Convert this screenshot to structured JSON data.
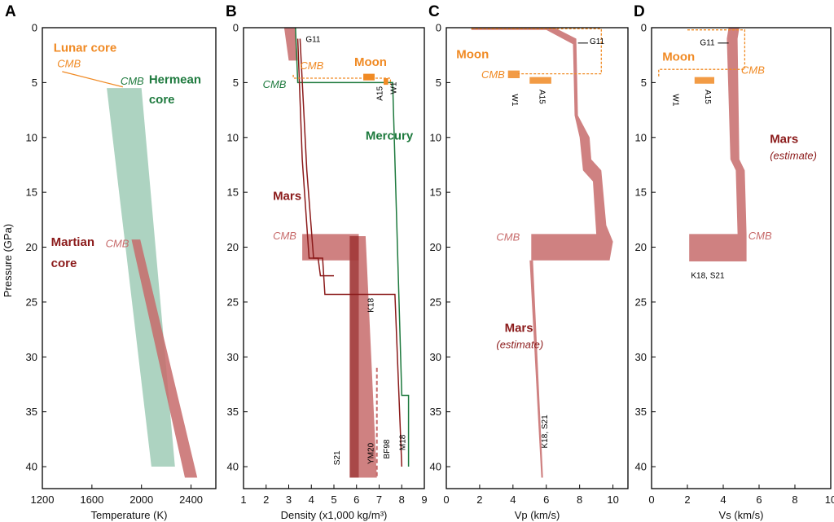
{
  "colors": {
    "moon": "#f08a24",
    "mercury": "#1e7a3e",
    "mars": "#8b1a1a",
    "mars_fill": "#c76b6b",
    "mercury_fill": "#9fcbb6",
    "axis": "#000000"
  },
  "chart_data": [
    {
      "type": "area",
      "panel": "A",
      "xlabel": "Temperature (K)",
      "ylabel": "Pressure (GPa)",
      "xlim": [
        1200,
        2600
      ],
      "ylim": [
        0,
        42
      ],
      "xticks": [
        1200,
        1600,
        2000,
        2400
      ],
      "yticks": [
        0,
        5,
        10,
        15,
        20,
        25,
        30,
        35,
        40
      ],
      "series": [
        {
          "name": "Hermean core",
          "polygon": [
            [
              1720,
              5.5
            ],
            [
              2000,
              5.5
            ],
            [
              2270,
              40
            ],
            [
              2080,
              40
            ]
          ]
        },
        {
          "name": "Martian core",
          "polygon": [
            [
              1920,
              19.3
            ],
            [
              1990,
              19.3
            ],
            [
              2450,
              41
            ],
            [
              2350,
              41
            ]
          ]
        },
        {
          "name": "Lunar core CMB",
          "line": [
            [
              1360,
              4.0
            ],
            [
              1850,
              5.4
            ]
          ]
        }
      ],
      "annotations": [
        {
          "id": "lunar_core",
          "text": "Lunar core",
          "x": 1290,
          "y": 2.2,
          "color": "moon",
          "bold": true
        },
        {
          "id": "lunar_cmb",
          "text": "CMB",
          "x": 1320,
          "y": 3.6,
          "color": "moon",
          "italic": true
        },
        {
          "id": "herm_cmb",
          "text": "CMB",
          "x": 1830,
          "y": 5.2,
          "color": "mercury",
          "italic": true
        },
        {
          "id": "herm_core1",
          "text": "Hermean",
          "x": 2060,
          "y": 5.1,
          "color": "mercury",
          "bold": true
        },
        {
          "id": "herm_core2",
          "text": "core",
          "x": 2060,
          "y": 6.9,
          "color": "mercury",
          "bold": true
        },
        {
          "id": "mart_core1",
          "text": "Martian",
          "x": 1270,
          "y": 19.9,
          "color": "mars",
          "bold": true
        },
        {
          "id": "mart_core2",
          "text": "core",
          "x": 1270,
          "y": 21.8,
          "color": "mars",
          "bold": true
        },
        {
          "id": "mart_cmb",
          "text": "CMB",
          "x": 1710,
          "y": 20.0,
          "color": "mars_fill",
          "italic": true
        }
      ]
    },
    {
      "type": "line",
      "panel": "B",
      "xlabel": "Density (x1,000 kg/m³)",
      "xlim": [
        1,
        9
      ],
      "ylim": [
        0,
        42
      ],
      "xticks": [
        1,
        2,
        3,
        4,
        5,
        6,
        7,
        8,
        9
      ],
      "yticks": [
        0,
        5,
        10,
        15,
        20,
        25,
        30,
        35,
        40
      ],
      "series": [
        {
          "name": "Mercury",
          "color": "mercury",
          "points": [
            [
              3.3,
              0
            ],
            [
              3.4,
              5
            ],
            [
              7.6,
              5
            ],
            [
              8.0,
              33.5
            ],
            [
              8.3,
              33.5
            ],
            [
              8.3,
              40
            ]
          ]
        },
        {
          "name": "Mars",
          "color": "mars",
          "points": [
            [
              3.4,
              1
            ],
            [
              3.6,
              12
            ],
            [
              3.9,
              21
            ],
            [
              4.5,
              21
            ],
            [
              4.6,
              24.3
            ],
            [
              7.7,
              24.3
            ],
            [
              8.0,
              40
            ]
          ]
        },
        {
          "name": "Mars",
          "color": "mars",
          "points": [
            [
              3.5,
              1
            ],
            [
              3.8,
              13
            ],
            [
              4.1,
              21
            ],
            [
              4.3,
              21
            ],
            [
              4.4,
              22.6
            ],
            [
              5.0,
              22.6
            ]
          ]
        }
      ],
      "areas": [
        {
          "name": "Mars shell",
          "color": "mars_fill",
          "polygon": [
            [
              2.8,
              0
            ],
            [
              3.3,
              0
            ],
            [
              3.4,
              3
            ],
            [
              3.0,
              3
            ]
          ]
        },
        {
          "name": "Mars CMB band",
          "color": "mars_fill",
          "polygon": [
            [
              3.6,
              18.8
            ],
            [
              6.1,
              18.8
            ],
            [
              6.1,
              21.2
            ],
            [
              3.6,
              21.2
            ]
          ]
        },
        {
          "name": "Mars core",
          "color": "mars_fill",
          "polygon": [
            [
              5.7,
              19
            ],
            [
              6.4,
              19
            ],
            [
              6.9,
              41
            ],
            [
              5.7,
              41
            ]
          ]
        },
        {
          "name": "Mars core dark",
          "color": "mars",
          "polygon": [
            [
              5.7,
              19
            ],
            [
              6.1,
              19
            ],
            [
              6.1,
              41
            ],
            [
              5.7,
              41
            ]
          ]
        }
      ],
      "annotations": [
        {
          "id": "g11",
          "text": "G11",
          "x": 3.75,
          "y": 1.3,
          "color": "black"
        },
        {
          "id": "cmb_o",
          "text": "CMB",
          "x": 3.5,
          "y": 3.8,
          "color": "moon",
          "italic": true
        },
        {
          "id": "moon",
          "text": "Moon",
          "x": 5.9,
          "y": 3.5,
          "color": "moon",
          "bold": true
        },
        {
          "id": "cmb_g",
          "text": "CMB",
          "x": 1.85,
          "y": 5.5,
          "color": "mercury",
          "italic": true
        },
        {
          "id": "a15",
          "text": "A15",
          "x": 7.15,
          "y": 6.0,
          "color": "black",
          "vertical": true
        },
        {
          "id": "w1",
          "text": "W1",
          "x": 7.75,
          "y": 5.5,
          "color": "black",
          "vertical": true
        },
        {
          "id": "mercury",
          "text": "Mercury",
          "x": 6.4,
          "y": 10.2,
          "color": "mercury",
          "bold": true
        },
        {
          "id": "mars",
          "text": "Mars",
          "x": 2.3,
          "y": 15.7,
          "color": "mars",
          "bold": true
        },
        {
          "id": "cmb_m",
          "text": "CMB",
          "x": 2.3,
          "y": 19.3,
          "color": "mars_fill",
          "italic": true
        },
        {
          "id": "k18",
          "text": "K18",
          "x": 6.75,
          "y": 25.3,
          "color": "black",
          "vertical": true
        },
        {
          "id": "s21",
          "text": "S21",
          "x": 5.25,
          "y": 39.2,
          "color": "black",
          "vertical": true
        },
        {
          "id": "ym20",
          "text": "YM20",
          "x": 6.75,
          "y": 38.8,
          "color": "black",
          "vertical": true
        },
        {
          "id": "bf98",
          "text": "BF98",
          "x": 7.45,
          "y": 38.4,
          "color": "black",
          "vertical": true
        },
        {
          "id": "m18",
          "text": "M18",
          "x": 8.15,
          "y": 37.8,
          "color": "black",
          "vertical": true
        }
      ]
    },
    {
      "type": "line",
      "panel": "C",
      "xlabel": "Vp (km/s)",
      "xlim": [
        0,
        10.9
      ],
      "ylim": [
        0,
        42
      ],
      "xticks": [
        0,
        2,
        4,
        6,
        8,
        10
      ],
      "yticks": [
        0,
        5,
        10,
        15,
        20,
        25,
        30,
        35,
        40
      ],
      "areas": [
        {
          "name": "Mars Vp",
          "color": "mars_fill",
          "polygon": [
            [
              1.5,
              0
            ],
            [
              6.5,
              0
            ],
            [
              7.8,
              1
            ],
            [
              7.9,
              8
            ],
            [
              8.6,
              10
            ],
            [
              8.7,
              12
            ],
            [
              9.3,
              13
            ],
            [
              9.6,
              18
            ],
            [
              10.0,
              19.5
            ],
            [
              9.8,
              21.2
            ],
            [
              5.1,
              21.2
            ],
            [
              5.1,
              18.8
            ],
            [
              9.0,
              18.8
            ],
            [
              8.8,
              14
            ],
            [
              8.2,
              13
            ],
            [
              8.0,
              10
            ],
            [
              7.7,
              8
            ],
            [
              7.6,
              1.5
            ],
            [
              6.0,
              0.2
            ],
            [
              1.5,
              0.2
            ]
          ]
        },
        {
          "name": "Mars core Vp",
          "color": "mars_fill",
          "polygon": [
            [
              5.0,
              21.2
            ],
            [
              5.2,
              21.2
            ],
            [
              5.8,
              41
            ],
            [
              5.7,
              41
            ]
          ]
        },
        {
          "name": "Moon A15",
          "color": "moon",
          "polygon": [
            [
              5.0,
              4.5
            ],
            [
              6.3,
              4.5
            ],
            [
              6.3,
              5.1
            ],
            [
              5.0,
              5.1
            ]
          ]
        },
        {
          "name": "Moon W1",
          "color": "moon",
          "polygon": [
            [
              3.7,
              3.9
            ],
            [
              4.4,
              3.9
            ],
            [
              4.4,
              4.6
            ],
            [
              3.7,
              4.6
            ]
          ]
        }
      ],
      "annotations": [
        {
          "id": "g11",
          "text": "G11",
          "x": 8.6,
          "y": 1.5,
          "color": "black"
        },
        {
          "id": "moon",
          "text": "Moon",
          "x": 0.6,
          "y": 2.8,
          "color": "moon",
          "bold": true
        },
        {
          "id": "cmb_o",
          "text": "CMB",
          "x": 2.1,
          "y": 4.6,
          "color": "moon",
          "italic": true
        },
        {
          "id": "w1",
          "text": "W1",
          "x": 3.95,
          "y": 6.6,
          "color": "black",
          "vertical": true,
          "down": true
        },
        {
          "id": "a15",
          "text": "A15",
          "x": 5.6,
          "y": 6.3,
          "color": "black",
          "vertical": true,
          "down": true
        },
        {
          "id": "cmb_m",
          "text": "CMB",
          "x": 3.0,
          "y": 19.4,
          "color": "mars_fill",
          "italic": true
        },
        {
          "id": "mars",
          "text": "Mars",
          "x": 3.5,
          "y": 27.7,
          "color": "mars",
          "bold": true
        },
        {
          "id": "mars_est",
          "text": "(estimate)",
          "x": 3.0,
          "y": 29.2,
          "color": "mars",
          "italic": true
        },
        {
          "id": "k18s21",
          "text": "K18, S21",
          "x": 6.05,
          "y": 36.8,
          "color": "black",
          "vertical": true
        }
      ]
    },
    {
      "type": "line",
      "panel": "D",
      "xlabel": "Vs (km/s)",
      "xlim": [
        0,
        10
      ],
      "ylim": [
        0,
        42
      ],
      "xticks": [
        0,
        2,
        4,
        6,
        8,
        10
      ],
      "yticks": [
        0,
        5,
        10,
        15,
        20,
        25,
        30,
        35,
        40
      ],
      "areas": [
        {
          "name": "Mars Vs",
          "color": "mars_fill",
          "polygon": [
            [
              4.3,
              0
            ],
            [
              4.9,
              0
            ],
            [
              4.8,
              1
            ],
            [
              4.9,
              12
            ],
            [
              5.2,
              13
            ],
            [
              5.3,
              18.8
            ],
            [
              5.3,
              21.3
            ],
            [
              2.1,
              21.3
            ],
            [
              2.1,
              18.8
            ],
            [
              4.8,
              18.8
            ],
            [
              4.7,
              13
            ],
            [
              4.4,
              12
            ],
            [
              4.2,
              1
            ]
          ]
        },
        {
          "name": "Moon A15",
          "color": "moon",
          "polygon": [
            [
              2.4,
              4.5
            ],
            [
              3.5,
              4.5
            ],
            [
              3.5,
              5.1
            ],
            [
              2.4,
              5.1
            ]
          ]
        }
      ],
      "annotations": [
        {
          "id": "g11",
          "text": "G11",
          "x": 2.7,
          "y": 1.6,
          "color": "black"
        },
        {
          "id": "moon",
          "text": "Moon",
          "x": 0.6,
          "y": 3.0,
          "color": "moon",
          "bold": true
        },
        {
          "id": "cmb_o",
          "text": "CMB",
          "x": 5.0,
          "y": 4.2,
          "color": "moon",
          "italic": true
        },
        {
          "id": "w1",
          "text": "W1",
          "x": 1.2,
          "y": 6.6,
          "color": "black",
          "vertical": true,
          "down": true
        },
        {
          "id": "a15",
          "text": "A15",
          "x": 3.0,
          "y": 6.3,
          "color": "black",
          "vertical": true,
          "down": true
        },
        {
          "id": "mars",
          "text": "Mars",
          "x": 6.6,
          "y": 10.5,
          "color": "mars",
          "bold": true
        },
        {
          "id": "mars_est",
          "text": "(estimate)",
          "x": 6.6,
          "y": 12.0,
          "color": "mars",
          "italic": true
        },
        {
          "id": "cmb_m",
          "text": "CMB",
          "x": 5.4,
          "y": 19.3,
          "color": "mars_fill",
          "italic": true
        },
        {
          "id": "k18s21",
          "text": "K18, S21",
          "x": 2.2,
          "y": 22.8,
          "color": "black"
        }
      ]
    }
  ],
  "panels": [
    {
      "label": "A"
    },
    {
      "label": "B"
    },
    {
      "label": "C"
    },
    {
      "label": "D"
    }
  ],
  "ylabel": "Pressure (GPa)"
}
